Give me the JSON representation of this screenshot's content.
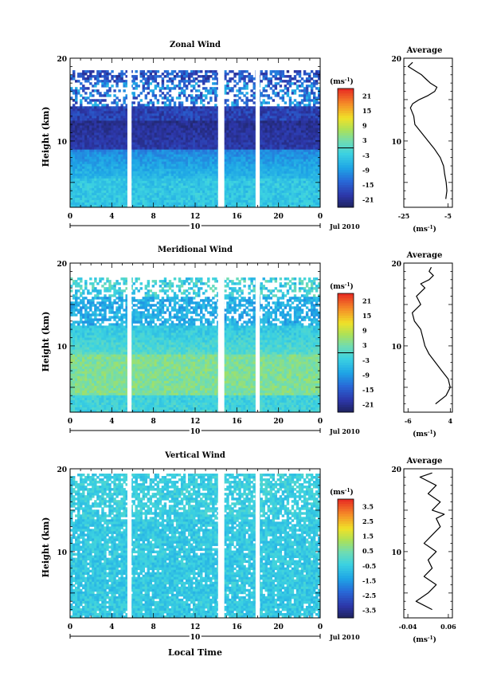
{
  "figure": {
    "date_label": "Jul 2010",
    "day_label": "10",
    "xlabel_bottom": "Local Time",
    "x_ticks": [
      "0",
      "4",
      "8",
      "12",
      "16",
      "20",
      "0"
    ]
  },
  "chart_data": [
    {
      "type": "heatmap",
      "title": "Zonal Wind",
      "ylabel": "Height (km)",
      "y_ticks": [
        "20",
        "10"
      ],
      "ylim": [
        2,
        20
      ],
      "xlim": [
        0,
        24
      ],
      "colorbar": {
        "unit_label": "(ms",
        "unit_exp": "-1",
        "ticks": [
          "21",
          "15",
          "9",
          "3",
          "-3",
          "-9",
          "-15",
          "-21"
        ],
        "range": [
          -24,
          24
        ],
        "zero_line_value": 0
      },
      "gaps_local_time": [
        [
          5.5,
          5.9
        ],
        [
          14.2,
          14.8
        ],
        [
          17.8,
          18.2
        ]
      ],
      "profile": {
        "title": "Average",
        "y_ticks": [
          "20",
          "10"
        ],
        "x_ticks": [
          "-25",
          "-5"
        ],
        "xlim": [
          -25,
          -3
        ],
        "xunit": "(ms",
        "xunit_exp": "-1",
        "points": [
          [
            -6.0,
            3.0
          ],
          [
            -5.5,
            4.0
          ],
          [
            -5.8,
            5.0
          ],
          [
            -6.5,
            6.0
          ],
          [
            -7.0,
            7.0
          ],
          [
            -8.5,
            8.0
          ],
          [
            -11.0,
            9.0
          ],
          [
            -14.0,
            10.0
          ],
          [
            -17.0,
            11.0
          ],
          [
            -20.0,
            12.0
          ],
          [
            -20.5,
            13.0
          ],
          [
            -22.0,
            14.0
          ],
          [
            -21.0,
            14.5
          ],
          [
            -18.0,
            15.0
          ],
          [
            -14.0,
            15.5
          ],
          [
            -11.0,
            16.0
          ],
          [
            -10.0,
            16.5
          ],
          [
            -13.0,
            17.0
          ],
          [
            -15.0,
            17.5
          ],
          [
            -17.0,
            18.0
          ],
          [
            -20.0,
            18.5
          ],
          [
            -23.0,
            19.0
          ],
          [
            -21.0,
            19.5
          ]
        ]
      }
    },
    {
      "type": "heatmap",
      "title": "Meridional Wind",
      "ylabel": "Height (km)",
      "y_ticks": [
        "20",
        "10"
      ],
      "ylim": [
        2,
        20
      ],
      "xlim": [
        0,
        24
      ],
      "colorbar": {
        "unit_label": "(ms",
        "unit_exp": "-1",
        "ticks": [
          "21",
          "15",
          "9",
          "3",
          "-3",
          "-9",
          "-15",
          "-21"
        ],
        "range": [
          -24,
          24
        ],
        "zero_line_value": 0
      },
      "gaps_local_time": [
        [
          5.5,
          5.9
        ],
        [
          14.2,
          14.8
        ],
        [
          17.8,
          18.2
        ]
      ],
      "profile": {
        "title": "Average",
        "y_ticks": [
          "20",
          "10"
        ],
        "x_ticks": [
          "-6",
          "4"
        ],
        "xlim": [
          -7,
          4.5
        ],
        "xunit": "(ms",
        "xunit_exp": "-1",
        "points": [
          [
            0.5,
            3.0
          ],
          [
            3.0,
            4.0
          ],
          [
            4.0,
            5.0
          ],
          [
            3.5,
            6.0
          ],
          [
            2.0,
            7.0
          ],
          [
            0.5,
            8.0
          ],
          [
            -1.0,
            9.0
          ],
          [
            -2.0,
            10.0
          ],
          [
            -2.5,
            11.0
          ],
          [
            -3.0,
            12.0
          ],
          [
            -4.5,
            13.0
          ],
          [
            -5.0,
            14.0
          ],
          [
            -3.0,
            15.0
          ],
          [
            -4.0,
            16.0
          ],
          [
            -2.0,
            17.0
          ],
          [
            -3.0,
            17.5
          ],
          [
            -1.0,
            18.0
          ],
          [
            0.0,
            18.5
          ],
          [
            -1.0,
            19.0
          ],
          [
            -0.5,
            19.5
          ]
        ]
      }
    },
    {
      "type": "heatmap",
      "title": "Vertical Wind",
      "ylabel": "Height (km)",
      "y_ticks": [
        "20",
        "10"
      ],
      "ylim": [
        2,
        20
      ],
      "xlim": [
        0,
        24
      ],
      "colorbar": {
        "unit_label": "(ms",
        "unit_exp": "-1",
        "ticks": [
          "3.5",
          "2.5",
          "1.5",
          "0.5",
          "-0.5",
          "-1.5",
          "-2.5",
          "-3.5"
        ],
        "range": [
          -4,
          4
        ],
        "zero_line_value": null
      },
      "gaps_local_time": [
        [
          5.5,
          5.9
        ],
        [
          14.2,
          14.8
        ],
        [
          17.8,
          18.2
        ]
      ],
      "profile": {
        "title": "Average",
        "y_ticks": [
          "20",
          "10"
        ],
        "x_ticks": [
          "-0.04",
          "0.06"
        ],
        "xlim": [
          -0.05,
          0.07
        ],
        "xunit": "(ms",
        "xunit_exp": "-1",
        "points": [
          [
            0.02,
            3.0
          ],
          [
            -0.02,
            4.0
          ],
          [
            0.01,
            5.0
          ],
          [
            0.03,
            6.0
          ],
          [
            0.0,
            7.0
          ],
          [
            0.02,
            8.0
          ],
          [
            0.01,
            9.0
          ],
          [
            0.03,
            10.0
          ],
          [
            0.0,
            11.0
          ],
          [
            0.02,
            12.0
          ],
          [
            0.04,
            13.0
          ],
          [
            0.03,
            14.0
          ],
          [
            0.05,
            14.5
          ],
          [
            0.02,
            15.0
          ],
          [
            0.04,
            16.0
          ],
          [
            0.01,
            17.0
          ],
          [
            0.03,
            18.0
          ],
          [
            -0.01,
            19.0
          ],
          [
            0.02,
            19.5
          ]
        ]
      }
    }
  ]
}
